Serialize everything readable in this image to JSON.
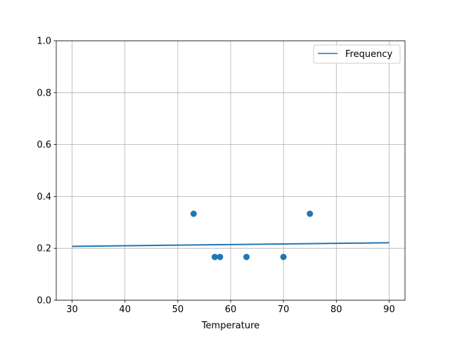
{
  "chart_data": {
    "type": "scatter",
    "title": "",
    "xlabel": "Temperature",
    "ylabel": "",
    "xlim": [
      27,
      93
    ],
    "ylim": [
      0,
      1
    ],
    "xticks": [
      30,
      40,
      50,
      60,
      70,
      80,
      90
    ],
    "yticks": [
      0.0,
      0.2,
      0.4,
      0.6,
      0.8,
      1.0
    ],
    "xtick_labels": [
      "30",
      "40",
      "50",
      "60",
      "70",
      "80",
      "90"
    ],
    "ytick_labels": [
      "0.0",
      "0.2",
      "0.4",
      "0.6",
      "0.8",
      "1.0"
    ],
    "grid": true,
    "legend_placement": "upper-right",
    "scatter": {
      "x": [
        53,
        57,
        58,
        63,
        70,
        75
      ],
      "y": [
        0.3333,
        0.1667,
        0.1667,
        0.1667,
        0.1667,
        0.3333
      ],
      "color": "#1f77b4"
    },
    "series": [
      {
        "name": "Frequency",
        "type": "line",
        "x": [
          30,
          90
        ],
        "y": [
          0.2076,
          0.2214
        ],
        "color": "#1f77b4"
      }
    ]
  }
}
